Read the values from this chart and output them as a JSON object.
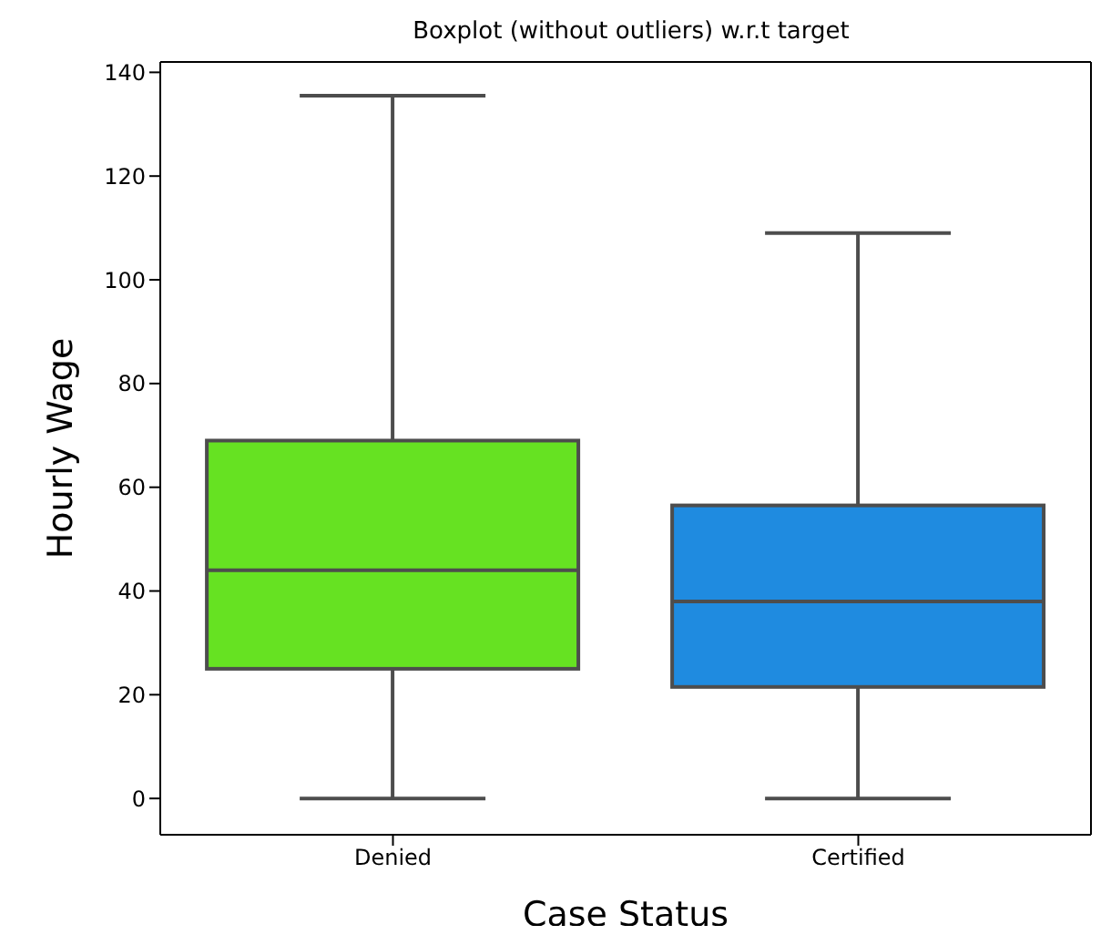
{
  "chart_data": {
    "type": "box",
    "title": "Boxplot (without outliers) w.r.t target",
    "xlabel": "Case Status",
    "ylabel": "Hourly Wage",
    "categories": [
      "Denied",
      "Certified"
    ],
    "colors": [
      "#66e222",
      "#1f8be0"
    ],
    "boxes": [
      {
        "low": 0,
        "q1": 25,
        "median": 44,
        "q3": 69,
        "high": 135.5
      },
      {
        "low": 0,
        "q1": 21.5,
        "median": 38,
        "q3": 56.5,
        "high": 109
      }
    ],
    "ylim": [
      -7,
      142
    ],
    "yticks": [
      0,
      20,
      40,
      60,
      80,
      100,
      120,
      140
    ],
    "grid": false,
    "legend": false
  }
}
